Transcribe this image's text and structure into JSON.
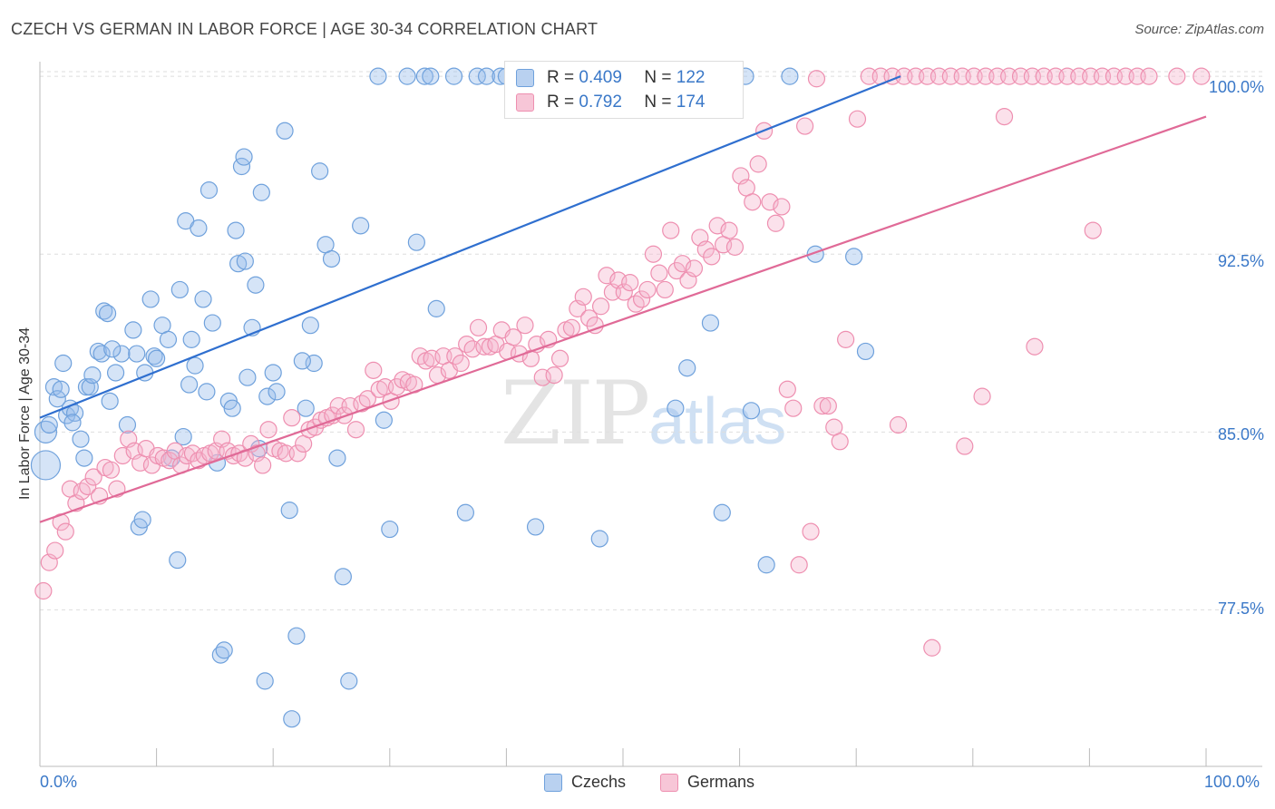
{
  "header": {
    "title": "CZECH VS GERMAN IN LABOR FORCE | AGE 30-34 CORRELATION CHART",
    "source": "Source: ZipAtlas.com"
  },
  "watermark": {
    "zip": "ZIP",
    "atlas": "atlas"
  },
  "legend": {
    "czechs": {
      "r_label": "R =",
      "r_value": "0.409",
      "n_label": "N =",
      "n_value": "122"
    },
    "germans": {
      "r_label": "R =",
      "r_value": "0.792",
      "n_label": "N =",
      "n_value": "174"
    }
  },
  "chart_data": {
    "type": "scatter",
    "title": "CZECH VS GERMAN IN LABOR FORCE | AGE 30-34 CORRELATION CHART",
    "xlabel": "",
    "ylabel": "In Labor Force | Age 30-34",
    "x_ticks": [
      "0.0%",
      "100.0%"
    ],
    "y_ticks": [
      "100.0%",
      "92.5%",
      "85.0%",
      "77.5%"
    ],
    "xlim": [
      0,
      100
    ],
    "ylim": [
      70.9,
      101.0
    ],
    "grid": true,
    "colors": {
      "czechs": "#6fa1dc",
      "germans": "#ee8fb0",
      "czechs_line": "#2f6fcf",
      "germans_line": "#e06a97"
    },
    "series": [
      {
        "name": "Czechs",
        "trend": {
          "x0": 0,
          "y0": 85.6,
          "x1": 73.8,
          "y1": 100.0
        },
        "points": [
          [
            0.5,
            85.0
          ],
          [
            0.5,
            83.6
          ],
          [
            0.8,
            85.3
          ],
          [
            1.2,
            86.9
          ],
          [
            1.5,
            86.4
          ],
          [
            1.8,
            86.8
          ],
          [
            2.0,
            87.9
          ],
          [
            2.3,
            85.7
          ],
          [
            2.6,
            86.0
          ],
          [
            3.0,
            85.8
          ],
          [
            3.5,
            84.7
          ],
          [
            3.8,
            83.9
          ],
          [
            4.0,
            86.9
          ],
          [
            4.3,
            86.9
          ],
          [
            4.5,
            87.4
          ],
          [
            5.0,
            88.4
          ],
          [
            5.3,
            88.3
          ],
          [
            5.5,
            90.1
          ],
          [
            5.8,
            90.0
          ],
          [
            6.0,
            86.3
          ],
          [
            6.5,
            87.5
          ],
          [
            7.0,
            88.3
          ],
          [
            7.5,
            85.3
          ],
          [
            8.0,
            89.3
          ],
          [
            8.3,
            88.3
          ],
          [
            8.5,
            81.0
          ],
          [
            8.8,
            81.3
          ],
          [
            9.0,
            87.5
          ],
          [
            9.5,
            90.6
          ],
          [
            9.8,
            88.2
          ],
          [
            10.0,
            88.1
          ],
          [
            10.5,
            89.5
          ],
          [
            11.0,
            88.9
          ],
          [
            11.3,
            83.9
          ],
          [
            11.8,
            79.6
          ],
          [
            12.0,
            91.0
          ],
          [
            12.3,
            84.8
          ],
          [
            12.5,
            93.9
          ],
          [
            13.0,
            88.9
          ],
          [
            13.3,
            87.8
          ],
          [
            13.6,
            93.6
          ],
          [
            14.0,
            90.6
          ],
          [
            14.3,
            86.7
          ],
          [
            14.5,
            95.2
          ],
          [
            14.8,
            89.6
          ],
          [
            15.2,
            83.7
          ],
          [
            15.5,
            75.6
          ],
          [
            15.8,
            75.8
          ],
          [
            16.2,
            86.3
          ],
          [
            16.5,
            86.0
          ],
          [
            16.8,
            93.5
          ],
          [
            17.0,
            92.1
          ],
          [
            17.3,
            96.2
          ],
          [
            17.6,
            92.2
          ],
          [
            17.8,
            87.3
          ],
          [
            18.2,
            89.4
          ],
          [
            18.5,
            91.2
          ],
          [
            18.8,
            84.3
          ],
          [
            19.0,
            95.1
          ],
          [
            19.3,
            74.5
          ],
          [
            19.5,
            86.5
          ],
          [
            20.0,
            87.5
          ],
          [
            20.3,
            86.7
          ],
          [
            21.0,
            97.7
          ],
          [
            21.4,
            81.7
          ],
          [
            21.6,
            72.9
          ],
          [
            22.0,
            76.4
          ],
          [
            22.8,
            86.0
          ],
          [
            23.2,
            89.5
          ],
          [
            23.5,
            87.9
          ],
          [
            24.0,
            96.0
          ],
          [
            24.5,
            92.9
          ],
          [
            25.0,
            92.3
          ],
          [
            25.5,
            83.9
          ],
          [
            26.0,
            78.9
          ],
          [
            26.5,
            74.5
          ],
          [
            27.5,
            93.7
          ],
          [
            29.0,
            100.0
          ],
          [
            29.5,
            85.5
          ],
          [
            30.0,
            80.9
          ],
          [
            31.5,
            100.0
          ],
          [
            32.3,
            93.0
          ],
          [
            33.0,
            100.0
          ],
          [
            33.5,
            100.0
          ],
          [
            34.0,
            90.2
          ],
          [
            35.5,
            100.0
          ],
          [
            36.5,
            81.6
          ],
          [
            37.5,
            100.0
          ],
          [
            38.3,
            100.0
          ],
          [
            39.5,
            100.0
          ],
          [
            40.0,
            100.0
          ],
          [
            41.0,
            100.0
          ],
          [
            42.0,
            100.0
          ],
          [
            42.5,
            81.0
          ],
          [
            43.0,
            100.0
          ],
          [
            43.8,
            100.0
          ],
          [
            45.2,
            100.0
          ],
          [
            45.6,
            100.0
          ],
          [
            46.5,
            100.0
          ],
          [
            47.5,
            100.0
          ],
          [
            48.0,
            80.5
          ],
          [
            49.0,
            100.0
          ],
          [
            50.5,
            100.0
          ],
          [
            51.0,
            100.0
          ],
          [
            51.6,
            98.9
          ],
          [
            54.5,
            86.0
          ],
          [
            55.5,
            87.7
          ],
          [
            56.5,
            100.0
          ],
          [
            57.5,
            89.6
          ],
          [
            58.5,
            81.6
          ],
          [
            60.5,
            100.0
          ],
          [
            61.0,
            85.9
          ],
          [
            62.3,
            79.4
          ],
          [
            64.3,
            100.0
          ],
          [
            66.5,
            92.5
          ],
          [
            69.8,
            92.4
          ],
          [
            70.8,
            88.4
          ],
          [
            2.8,
            85.4
          ],
          [
            6.2,
            88.5
          ],
          [
            12.8,
            87.0
          ],
          [
            17.5,
            96.6
          ],
          [
            22.5,
            88.0
          ]
        ]
      },
      {
        "name": "Germans",
        "trend": {
          "x0": 0,
          "y0": 81.2,
          "x1": 100,
          "y1": 98.3
        },
        "points": [
          [
            0.3,
            78.3
          ],
          [
            0.8,
            79.5
          ],
          [
            1.3,
            80.0
          ],
          [
            1.8,
            81.2
          ],
          [
            2.2,
            80.8
          ],
          [
            2.6,
            82.6
          ],
          [
            3.1,
            82.0
          ],
          [
            3.6,
            82.5
          ],
          [
            4.1,
            82.7
          ],
          [
            4.6,
            83.1
          ],
          [
            5.1,
            82.3
          ],
          [
            5.6,
            83.5
          ],
          [
            6.1,
            83.4
          ],
          [
            6.6,
            82.6
          ],
          [
            7.1,
            84.0
          ],
          [
            7.6,
            84.7
          ],
          [
            8.1,
            84.2
          ],
          [
            8.6,
            83.7
          ],
          [
            9.1,
            84.3
          ],
          [
            9.6,
            83.6
          ],
          [
            10.1,
            84.0
          ],
          [
            10.6,
            83.9
          ],
          [
            11.1,
            83.8
          ],
          [
            11.6,
            84.2
          ],
          [
            12.1,
            83.6
          ],
          [
            12.6,
            84.0
          ],
          [
            13.1,
            84.1
          ],
          [
            13.6,
            83.8
          ],
          [
            14.1,
            84.0
          ],
          [
            14.6,
            84.1
          ],
          [
            15.1,
            84.2
          ],
          [
            15.6,
            84.7
          ],
          [
            16.1,
            84.2
          ],
          [
            16.6,
            84.0
          ],
          [
            17.1,
            84.1
          ],
          [
            17.6,
            83.9
          ],
          [
            18.1,
            84.5
          ],
          [
            18.6,
            84.1
          ],
          [
            19.1,
            83.6
          ],
          [
            19.6,
            85.1
          ],
          [
            20.1,
            84.3
          ],
          [
            20.6,
            84.2
          ],
          [
            21.1,
            84.1
          ],
          [
            21.6,
            85.6
          ],
          [
            22.1,
            84.1
          ],
          [
            22.6,
            84.5
          ],
          [
            23.1,
            85.1
          ],
          [
            23.6,
            85.2
          ],
          [
            24.1,
            85.5
          ],
          [
            24.6,
            85.6
          ],
          [
            25.1,
            85.7
          ],
          [
            25.6,
            86.1
          ],
          [
            26.1,
            85.7
          ],
          [
            26.6,
            86.1
          ],
          [
            27.1,
            85.1
          ],
          [
            27.6,
            86.2
          ],
          [
            28.1,
            86.4
          ],
          [
            28.6,
            87.6
          ],
          [
            29.1,
            86.8
          ],
          [
            29.6,
            86.9
          ],
          [
            30.1,
            86.3
          ],
          [
            30.6,
            86.9
          ],
          [
            31.1,
            87.2
          ],
          [
            31.6,
            87.1
          ],
          [
            32.1,
            87.0
          ],
          [
            32.6,
            88.2
          ],
          [
            33.1,
            88.0
          ],
          [
            33.6,
            88.1
          ],
          [
            34.1,
            87.4
          ],
          [
            34.6,
            88.2
          ],
          [
            35.1,
            87.6
          ],
          [
            35.6,
            88.2
          ],
          [
            36.1,
            87.9
          ],
          [
            36.6,
            88.7
          ],
          [
            37.1,
            88.5
          ],
          [
            37.6,
            89.4
          ],
          [
            38.1,
            88.6
          ],
          [
            38.6,
            88.6
          ],
          [
            39.1,
            88.7
          ],
          [
            39.6,
            89.3
          ],
          [
            40.1,
            88.4
          ],
          [
            40.6,
            89.0
          ],
          [
            41.1,
            88.3
          ],
          [
            41.6,
            89.5
          ],
          [
            42.1,
            88.1
          ],
          [
            42.6,
            88.7
          ],
          [
            43.1,
            87.3
          ],
          [
            43.6,
            88.9
          ],
          [
            44.1,
            87.4
          ],
          [
            44.6,
            88.1
          ],
          [
            45.1,
            89.3
          ],
          [
            45.6,
            89.4
          ],
          [
            46.1,
            90.2
          ],
          [
            46.6,
            90.7
          ],
          [
            47.1,
            89.8
          ],
          [
            47.6,
            89.5
          ],
          [
            48.1,
            90.3
          ],
          [
            48.6,
            91.6
          ],
          [
            49.1,
            90.9
          ],
          [
            49.6,
            91.4
          ],
          [
            50.1,
            90.9
          ],
          [
            50.6,
            91.3
          ],
          [
            51.1,
            90.4
          ],
          [
            51.6,
            90.6
          ],
          [
            52.1,
            91.0
          ],
          [
            52.6,
            92.5
          ],
          [
            53.1,
            91.7
          ],
          [
            53.6,
            91.0
          ],
          [
            54.1,
            93.5
          ],
          [
            54.6,
            91.8
          ],
          [
            55.1,
            92.1
          ],
          [
            55.6,
            91.4
          ],
          [
            56.1,
            91.9
          ],
          [
            56.6,
            93.2
          ],
          [
            57.1,
            92.7
          ],
          [
            57.6,
            92.4
          ],
          [
            58.1,
            93.7
          ],
          [
            58.6,
            92.9
          ],
          [
            59.1,
            93.5
          ],
          [
            59.6,
            92.8
          ],
          [
            60.1,
            95.8
          ],
          [
            60.6,
            95.3
          ],
          [
            61.1,
            94.7
          ],
          [
            61.6,
            96.3
          ],
          [
            62.1,
            97.7
          ],
          [
            62.6,
            94.7
          ],
          [
            63.1,
            93.8
          ],
          [
            63.6,
            94.5
          ],
          [
            64.1,
            86.8
          ],
          [
            64.6,
            86.0
          ],
          [
            65.1,
            79.4
          ],
          [
            65.6,
            97.9
          ],
          [
            66.1,
            80.8
          ],
          [
            66.6,
            99.9
          ],
          [
            67.1,
            86.1
          ],
          [
            67.6,
            86.1
          ],
          [
            68.1,
            85.2
          ],
          [
            68.6,
            84.6
          ],
          [
            69.1,
            88.9
          ],
          [
            70.1,
            98.2
          ],
          [
            71.1,
            100.0
          ],
          [
            72.1,
            100.0
          ],
          [
            73.1,
            100.0
          ],
          [
            74.1,
            100.0
          ],
          [
            75.1,
            100.0
          ],
          [
            76.1,
            100.0
          ],
          [
            77.1,
            100.0
          ],
          [
            78.1,
            100.0
          ],
          [
            79.1,
            100.0
          ],
          [
            80.1,
            100.0
          ],
          [
            81.1,
            100.0
          ],
          [
            82.1,
            100.0
          ],
          [
            83.1,
            100.0
          ],
          [
            84.1,
            100.0
          ],
          [
            85.1,
            100.0
          ],
          [
            86.1,
            100.0
          ],
          [
            87.1,
            100.0
          ],
          [
            88.1,
            100.0
          ],
          [
            89.1,
            100.0
          ],
          [
            90.1,
            100.0
          ],
          [
            91.1,
            100.0
          ],
          [
            92.1,
            100.0
          ],
          [
            93.1,
            100.0
          ],
          [
            94.1,
            100.0
          ],
          [
            95.1,
            100.0
          ],
          [
            97.5,
            100.0
          ],
          [
            99.6,
            100.0
          ],
          [
            76.5,
            75.9
          ],
          [
            79.3,
            84.4
          ],
          [
            80.8,
            86.5
          ],
          [
            82.7,
            98.3
          ],
          [
            85.3,
            88.6
          ],
          [
            90.3,
            93.5
          ],
          [
            73.6,
            85.3
          ]
        ]
      }
    ]
  },
  "bottom_legend": {
    "czechs": "Czechs",
    "germans": "Germans"
  }
}
